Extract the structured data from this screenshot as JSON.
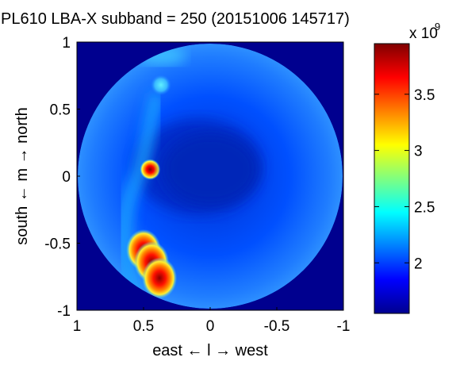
{
  "chart_data": {
    "type": "heatmap",
    "title": "PL610 LBA-X subband = 250 (20151006 145717)",
    "xlabel": "east ← l → west",
    "ylabel": "south ← m → north",
    "x_reversed": true,
    "xlim": [
      1,
      -1
    ],
    "ylim": [
      -1,
      1
    ],
    "x_ticks": [
      "1",
      "0.5",
      "0",
      "-0.5",
      "-1"
    ],
    "y_ticks": [
      "1",
      "0.5",
      "0",
      "-0.5",
      "-1"
    ],
    "colormap": "jet",
    "colorbar": {
      "multiplier_base": "x 10",
      "multiplier_exp": "9",
      "range": [
        1.55,
        3.95
      ],
      "ticks": [
        "2",
        "2.5",
        "3",
        "3.5"
      ]
    },
    "background_level": 1.55,
    "sky_level": 2.1,
    "sources": [
      {
        "l": 0.5,
        "m": -0.55,
        "value": 3.9
      },
      {
        "l": 0.44,
        "m": -0.64,
        "value": 3.85
      },
      {
        "l": 0.38,
        "m": -0.76,
        "value": 3.6
      },
      {
        "l": 0.45,
        "m": 0.05,
        "value": 3.9
      },
      {
        "l": 0.37,
        "m": 0.68,
        "value": 2.4
      },
      {
        "l": 0.0,
        "m": 0.05,
        "value": 1.7
      }
    ]
  }
}
